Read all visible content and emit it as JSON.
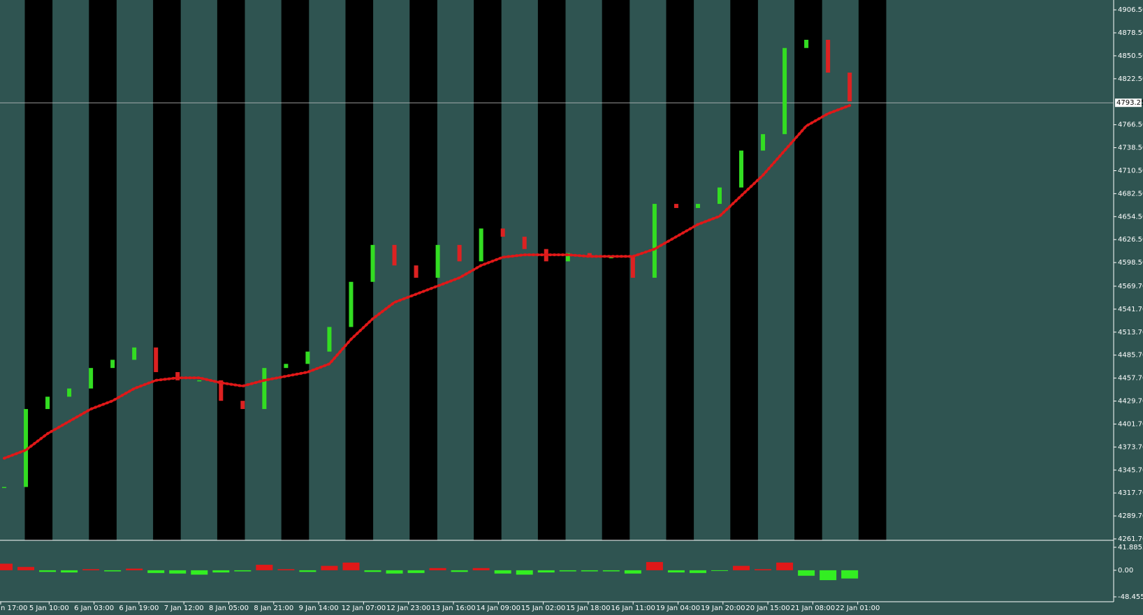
{
  "chart_data": {
    "type": "candlestick",
    "close": [
      4325,
      4420,
      4435,
      4445,
      4470,
      4480,
      4495,
      4465,
      4455,
      4455,
      4430,
      4420,
      4470,
      4475,
      4490,
      4520,
      4575,
      4620,
      4595,
      4580,
      4620,
      4600,
      4640,
      4630,
      4615,
      4600,
      4610,
      4605,
      4605,
      4580,
      4670,
      4665,
      4670,
      4690,
      4735,
      4755,
      4860,
      4870,
      4830,
      4795
    ],
    "up_color": "#33dd22",
    "down_color": "#dd2222",
    "moving_average": {
      "color": "#e01818",
      "values": [
        4360,
        4370,
        4390,
        4405,
        4420,
        4430,
        4445,
        4455,
        4458,
        4458,
        4452,
        4448,
        4455,
        4460,
        4465,
        4475,
        4505,
        4530,
        4550,
        4560,
        4570,
        4580,
        4595,
        4605,
        4608,
        4608,
        4608,
        4606,
        4606,
        4606,
        4615,
        4630,
        4645,
        4655,
        4680,
        4705,
        4735,
        4765,
        4780,
        4790
      ]
    },
    "price_line": {
      "value": 4793.25,
      "label": "4793.25"
    },
    "ylim": [
      4261.7,
      4918.5
    ],
    "yticks": [
      {
        "value": 4906.5,
        "label": "4906.50"
      },
      {
        "value": 4878.5,
        "label": "4878.50"
      },
      {
        "value": 4850.5,
        "label": "4850.50"
      },
      {
        "value": 4822.5,
        "label": "4822.50"
      },
      {
        "value": 4766.5,
        "label": "4766.50"
      },
      {
        "value": 4738.5,
        "label": "4738.50"
      },
      {
        "value": 4710.5,
        "label": "4710.50"
      },
      {
        "value": 4682.5,
        "label": "4682.50"
      },
      {
        "value": 4654.5,
        "label": "4654.50"
      },
      {
        "value": 4626.5,
        "label": "4626.50"
      },
      {
        "value": 4598.5,
        "label": "4598.50"
      },
      {
        "value": 4569.7,
        "label": "4569.70"
      },
      {
        "value": 4541.7,
        "label": "4541.70"
      },
      {
        "value": 4513.7,
        "label": "4513.70"
      },
      {
        "value": 4485.7,
        "label": "4485.70"
      },
      {
        "value": 4457.7,
        "label": "4457.70"
      },
      {
        "value": 4429.7,
        "label": "4429.70"
      },
      {
        "value": 4401.7,
        "label": "4401.70"
      },
      {
        "value": 4373.7,
        "label": "4373.70"
      },
      {
        "value": 4345.7,
        "label": "4345.70"
      },
      {
        "value": 4317.7,
        "label": "4317.70"
      },
      {
        "value": 4289.7,
        "label": "4289.70"
      },
      {
        "value": 4261.7,
        "label": "4261.70"
      }
    ],
    "time_labels": [
      "n 17:00",
      "5 Jan 10:00",
      "6 Jan 03:00",
      "6 Jan 19:00",
      "7 Jan 12:00",
      "8 Jan 05:00",
      "8 Jan 21:00",
      "9 Jan 14:00",
      "12 Jan 07:00",
      "12 Jan 23:00",
      "13 Jan 16:00",
      "14 Jan 09:00",
      "15 Jan 02:00",
      "15 Jan 18:00",
      "16 Jan 11:00",
      "19 Jan 04:00",
      "19 Jan 20:00",
      "20 Jan 15:00",
      "21 Jan 08:00",
      "22 Jan 01:00"
    ],
    "indicator": {
      "type": "histogram",
      "positive_color": "#e01818",
      "negative_color": "#33ee22",
      "values": [
        12,
        6,
        -3,
        -4,
        2,
        -2,
        3,
        -5,
        -6,
        -8,
        -4,
        -2,
        10,
        2,
        -3,
        8,
        14,
        -3,
        -6,
        -5,
        4,
        -3,
        4,
        -6,
        -8,
        -4,
        -2,
        -2,
        -2,
        -6,
        15,
        -4,
        -5,
        -1,
        8,
        2,
        14,
        -10,
        -18,
        -15
      ],
      "ylim": [
        -48.4553,
        41.8855
      ],
      "yticks": [
        {
          "value": 41.8855,
          "label": "41.8855"
        },
        {
          "value": 0,
          "label": "0.00"
        },
        {
          "value": -48.4553,
          "label": "-48.4553"
        }
      ]
    }
  }
}
